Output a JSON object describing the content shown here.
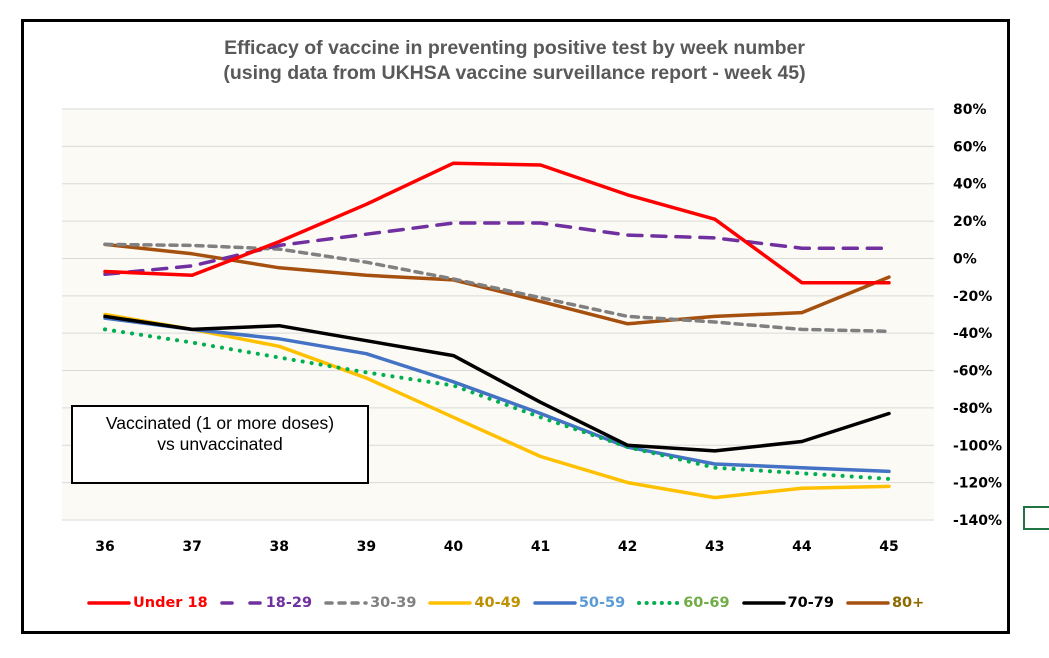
{
  "chart_data": {
    "type": "line",
    "title": [
      "Efficacy of vaccine in preventing positive test by week number",
      "(using data from UKHSA vaccine surveillance report - week 45)"
    ],
    "xlabel": "",
    "ylabel": "",
    "x": [
      "36",
      "37",
      "38",
      "39",
      "40",
      "41",
      "42",
      "43",
      "44",
      "45"
    ],
    "ylim": [
      -140,
      80
    ],
    "yticks": [
      80,
      60,
      40,
      20,
      0,
      -20,
      -40,
      -60,
      -80,
      -100,
      -120,
      -140
    ],
    "ytick_labels": [
      "80%",
      "60%",
      "40%",
      "20%",
      "0%",
      "-20%",
      "-40%",
      "-60%",
      "-80%",
      "-100%",
      "-120%",
      "-140%"
    ],
    "y_axis_side": "right",
    "grid": true,
    "legend_position": "bottom",
    "annotation": [
      "Vaccinated (1 or more doses)",
      "vs unvaccinated"
    ],
    "series": [
      {
        "name": "Under 18",
        "color": "#FF0000",
        "label_color": "#FF0000",
        "dash": "solid",
        "values": [
          -7,
          -9,
          9,
          29,
          51,
          50,
          34,
          21,
          -13,
          -13
        ]
      },
      {
        "name": "18-29",
        "color": "#7030A0",
        "label_color": "#7030A0",
        "dash": "longdash",
        "values": [
          -8.5,
          -4,
          7,
          13,
          19,
          19,
          12.5,
          11,
          5.5,
          5.5
        ]
      },
      {
        "name": "30-39",
        "color": "#808080",
        "label_color": "#808080",
        "dash": "dash",
        "values": [
          7.5,
          7,
          5,
          -2,
          -11,
          -21,
          -31,
          -34,
          -38,
          -39
        ]
      },
      {
        "name": "40-49",
        "color": "#FFC000",
        "label_color": "#BF9000",
        "dash": "solid",
        "values": [
          -30,
          -38,
          -47,
          -64,
          -85,
          -106,
          -120,
          -128,
          -123,
          -122
        ]
      },
      {
        "name": "50-59",
        "color": "#4472C4",
        "label_color": "#5B9BD5",
        "dash": "solid",
        "values": [
          -32,
          -38,
          -43,
          -51,
          -66,
          -83,
          -101,
          -110,
          -112,
          -114
        ]
      },
      {
        "name": "60-69",
        "color": "#00B050",
        "label_color": "#70AD47",
        "dash": "dot",
        "values": [
          -38,
          -45,
          -53,
          -61,
          -68,
          -85,
          -101,
          -112,
          -115,
          -118
        ]
      },
      {
        "name": "70-79",
        "color": "#000000",
        "label_color": "#000000",
        "dash": "solid",
        "values": [
          -31,
          -38,
          -36,
          -44,
          -52,
          -77,
          -100,
          -103,
          -98,
          -83
        ]
      },
      {
        "name": "80+",
        "color": "#A5500F",
        "label_color": "#8C6A00",
        "dash": "solid",
        "values": [
          7.5,
          2.5,
          -5,
          -9,
          -11.5,
          -23,
          -35,
          -31,
          -29,
          -10
        ]
      }
    ]
  }
}
